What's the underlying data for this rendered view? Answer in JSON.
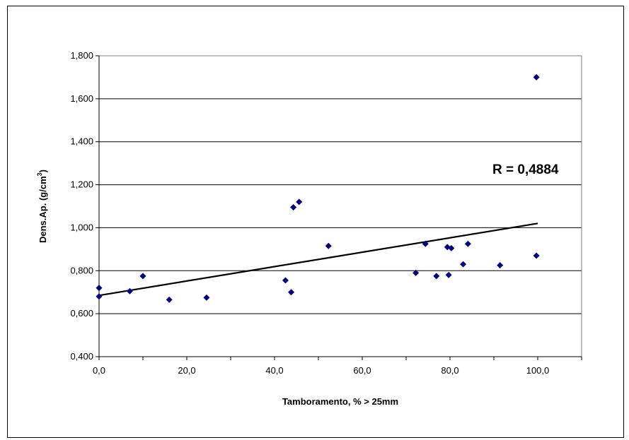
{
  "chart_data": {
    "type": "scatter",
    "title": "",
    "xlabel": "Tamboramento, % > 25mm",
    "ylabel_main": "Dens.Ap. (g/cm",
    "ylabel_sup": "3",
    "ylabel_close": ")",
    "xlim": [
      0,
      110
    ],
    "ylim": [
      0.4,
      1.8
    ],
    "x_ticks": [
      {
        "value": 0,
        "label": "0,0"
      },
      {
        "value": 20,
        "label": "20,0"
      },
      {
        "value": 40,
        "label": "40,0"
      },
      {
        "value": 60,
        "label": "60,0"
      },
      {
        "value": 80,
        "label": "80,0"
      },
      {
        "value": 100,
        "label": "100,0"
      }
    ],
    "y_ticks": [
      {
        "value": 0.4,
        "label": "0,400"
      },
      {
        "value": 0.6,
        "label": "0,600"
      },
      {
        "value": 0.8,
        "label": "0,800"
      },
      {
        "value": 1.0,
        "label": "1,000"
      },
      {
        "value": 1.2,
        "label": "1,200"
      },
      {
        "value": 1.4,
        "label": "1,400"
      },
      {
        "value": 1.6,
        "label": "1,600"
      },
      {
        "value": 1.8,
        "label": "1,800"
      }
    ],
    "grid": "horizontal",
    "marker_color": "#000080",
    "points": [
      [
        0,
        0.72
      ],
      [
        0,
        0.68
      ],
      [
        7,
        0.705
      ],
      [
        10,
        0.775
      ],
      [
        16,
        0.665
      ],
      [
        24.5,
        0.675
      ],
      [
        42.5,
        0.755
      ],
      [
        43.8,
        0.7
      ],
      [
        44.3,
        1.095
      ],
      [
        45.6,
        1.12
      ],
      [
        52.3,
        0.915
      ],
      [
        72.2,
        0.79
      ],
      [
        74.4,
        0.925
      ],
      [
        76.9,
        0.775
      ],
      [
        79.4,
        0.91
      ],
      [
        79.7,
        0.78
      ],
      [
        80.3,
        0.905
      ],
      [
        83,
        0.83
      ],
      [
        84.1,
        0.925
      ],
      [
        91.4,
        0.825
      ],
      [
        99.7,
        1.7
      ],
      [
        99.7,
        0.87
      ]
    ],
    "trendline": {
      "x": [
        0,
        100
      ],
      "y": [
        0.685,
        1.02
      ],
      "color": "#000000"
    },
    "annotation": "R = 0,4884"
  }
}
